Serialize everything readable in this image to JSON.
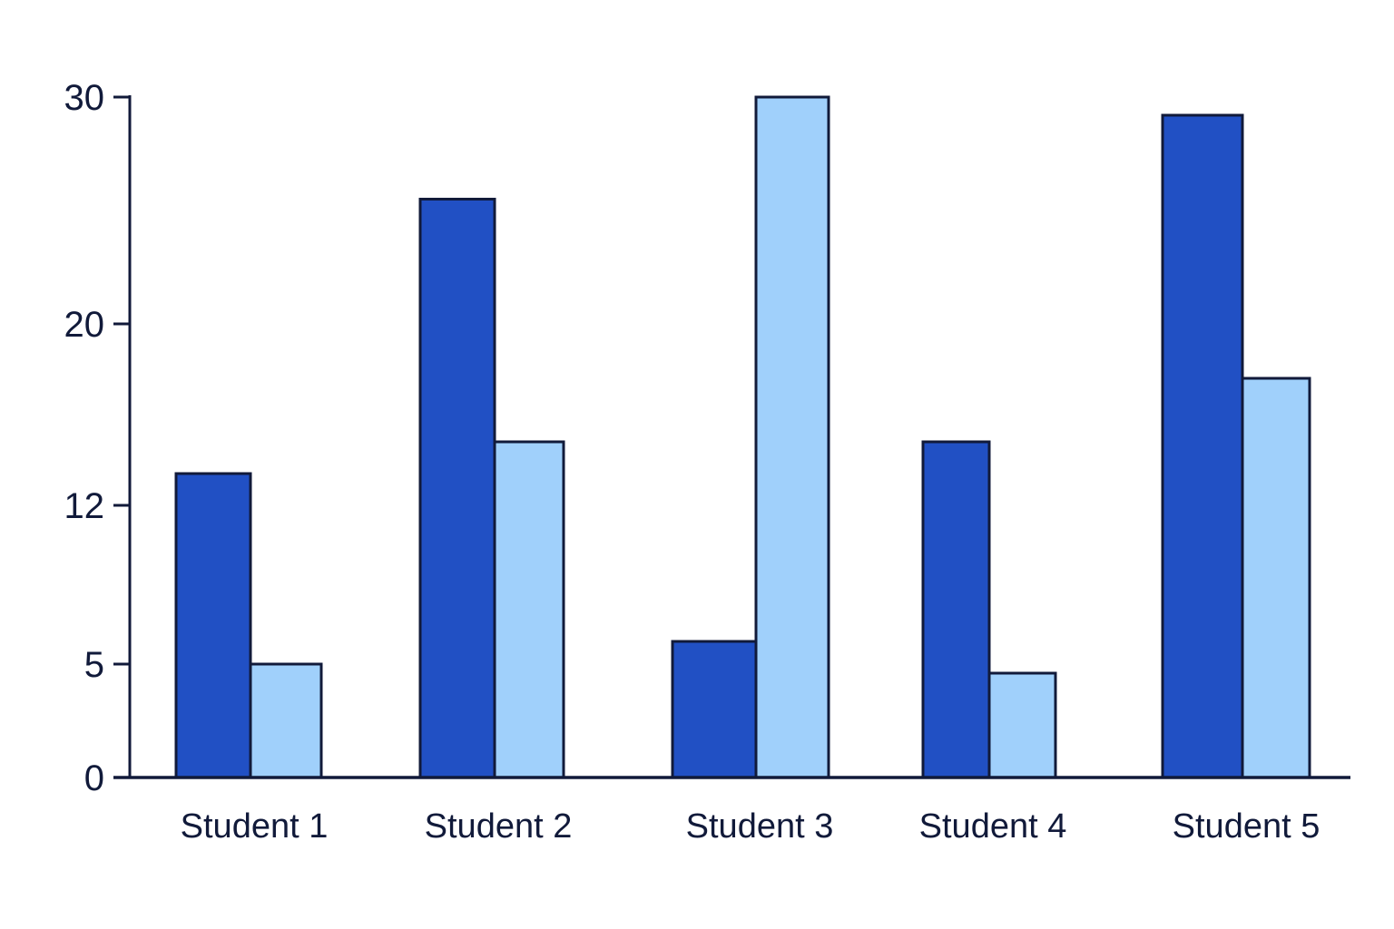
{
  "chart_data": {
    "type": "bar",
    "categories": [
      "Student 1",
      "Student 2",
      "Student 3",
      "Student 4",
      "Student 5"
    ],
    "series": [
      {
        "values": [
          13.4,
          25.5,
          6.0,
          14.8,
          29.2
        ],
        "color": "#2150c4"
      },
      {
        "values": [
          5.0,
          14.8,
          30.0,
          4.6,
          17.6
        ],
        "color": "#a0d0fb"
      }
    ],
    "yticks": [
      0,
      5,
      12,
      20,
      30
    ],
    "ylim": [
      0,
      30
    ],
    "title": "",
    "xlabel": "",
    "ylabel": "",
    "grid": false,
    "legend": "none",
    "outline_color": "#111a3a"
  }
}
